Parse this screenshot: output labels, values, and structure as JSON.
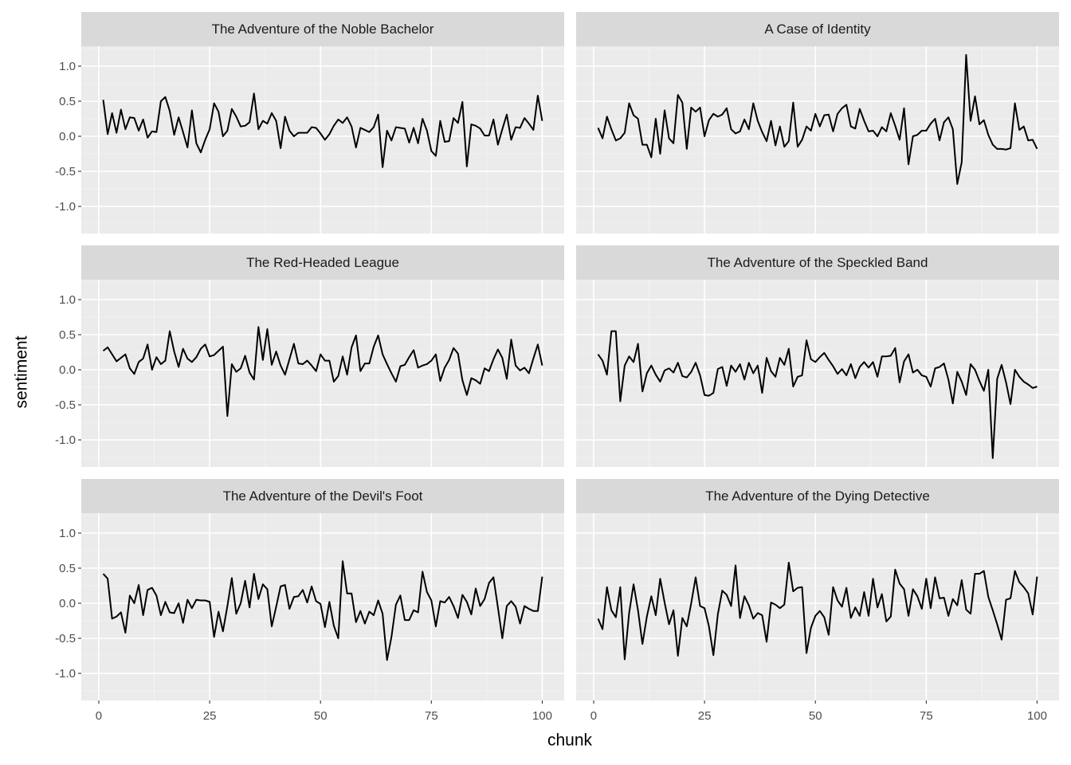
{
  "chart_data": {
    "type": "line",
    "x_label": "chunk",
    "y_label": "sentiment",
    "x": [
      1,
      2,
      3,
      4,
      5,
      6,
      7,
      8,
      9,
      10,
      11,
      12,
      13,
      14,
      15,
      16,
      17,
      18,
      19,
      20,
      21,
      22,
      23,
      24,
      25,
      26,
      27,
      28,
      29,
      30,
      31,
      32,
      33,
      34,
      35,
      36,
      37,
      38,
      39,
      40,
      41,
      42,
      43,
      44,
      45,
      46,
      47,
      48,
      49,
      50,
      51,
      52,
      53,
      54,
      55,
      56,
      57,
      58,
      59,
      60,
      61,
      62,
      63,
      64,
      65,
      66,
      67,
      68,
      69,
      70,
      71,
      72,
      73,
      74,
      75,
      76,
      77,
      78,
      79,
      80,
      81,
      82,
      83,
      84,
      85,
      86,
      87,
      88,
      89,
      90,
      91,
      92,
      93,
      94,
      95,
      96,
      97,
      98,
      99,
      100
    ],
    "xlim": [
      -3.95,
      104.95
    ],
    "xticks": [
      0,
      25,
      50,
      75,
      100
    ],
    "ylim": [
      -1.386,
      1.284
    ],
    "yticks": [
      {
        "value": -1,
        "label": "-1.0"
      },
      {
        "value": -0.5,
        "label": "-0.5"
      },
      {
        "value": 0,
        "label": "0.0"
      },
      {
        "value": 0.5,
        "label": "0.5"
      },
      {
        "value": 1,
        "label": "1.0"
      }
    ],
    "grid": true,
    "color": "#000000",
    "panels": [
      {
        "title": "The Adventure of the Noble Bachelor",
        "values": [
          0.52,
          0.03,
          0.33,
          0.05,
          0.38,
          0.1,
          0.27,
          0.26,
          0.08,
          0.24,
          -0.02,
          0.07,
          0.06,
          0.5,
          0.56,
          0.36,
          0.02,
          0.27,
          0.06,
          -0.16,
          0.37,
          -0.1,
          -0.23,
          -0.05,
          0.1,
          0.47,
          0.35,
          0.0,
          0.08,
          0.39,
          0.28,
          0.14,
          0.15,
          0.2,
          0.61,
          0.1,
          0.22,
          0.18,
          0.33,
          0.22,
          -0.17,
          0.28,
          0.08,
          0.0,
          0.05,
          0.05,
          0.05,
          0.13,
          0.12,
          0.04,
          -0.05,
          0.03,
          0.15,
          0.24,
          0.19,
          0.27,
          0.14,
          -0.16,
          0.12,
          0.09,
          0.06,
          0.13,
          0.31,
          -0.44,
          0.08,
          -0.06,
          0.13,
          0.12,
          0.11,
          -0.09,
          0.12,
          -0.1,
          0.25,
          0.08,
          -0.21,
          -0.28,
          0.22,
          -0.08,
          -0.07,
          0.26,
          0.19,
          0.49,
          -0.43,
          0.17,
          0.15,
          0.11,
          0.01,
          0.01,
          0.24,
          -0.12,
          0.1,
          0.31,
          -0.05,
          0.13,
          0.12,
          0.26,
          0.18,
          0.09,
          0.58,
          0.22
        ]
      },
      {
        "title": "A Case of Identity",
        "values": [
          0.12,
          -0.03,
          0.28,
          0.1,
          -0.06,
          -0.03,
          0.05,
          0.47,
          0.3,
          0.25,
          -0.12,
          -0.12,
          -0.3,
          0.25,
          -0.25,
          0.37,
          -0.03,
          -0.1,
          0.59,
          0.48,
          -0.18,
          0.41,
          0.35,
          0.41,
          0.0,
          0.23,
          0.32,
          0.28,
          0.31,
          0.4,
          0.1,
          0.04,
          0.07,
          0.24,
          0.1,
          0.47,
          0.22,
          0.06,
          -0.07,
          0.22,
          -0.13,
          0.14,
          -0.15,
          -0.07,
          0.48,
          -0.15,
          -0.05,
          0.14,
          0.08,
          0.32,
          0.14,
          0.3,
          0.31,
          0.07,
          0.32,
          0.4,
          0.45,
          0.14,
          0.11,
          0.39,
          0.22,
          0.07,
          0.08,
          0.0,
          0.13,
          0.07,
          0.33,
          0.15,
          -0.05,
          0.4,
          -0.4,
          0.0,
          0.02,
          0.08,
          0.08,
          0.18,
          0.25,
          -0.06,
          0.2,
          0.27,
          0.1,
          -0.68,
          -0.37,
          1.16,
          0.22,
          0.57,
          0.17,
          0.23,
          0.02,
          -0.12,
          -0.18,
          -0.18,
          -0.19,
          -0.17,
          0.47,
          0.09,
          0.14,
          -0.06,
          -0.05,
          -0.18
        ]
      },
      {
        "title": "The Red-Headed League",
        "values": [
          0.27,
          0.32,
          0.22,
          0.12,
          0.17,
          0.22,
          0.02,
          -0.06,
          0.11,
          0.16,
          0.36,
          0.0,
          0.18,
          0.08,
          0.13,
          0.55,
          0.26,
          0.04,
          0.3,
          0.16,
          0.11,
          0.18,
          0.3,
          0.36,
          0.19,
          0.21,
          0.27,
          0.33,
          -0.66,
          0.08,
          -0.03,
          0.02,
          0.2,
          -0.04,
          -0.14,
          0.61,
          0.14,
          0.58,
          0.07,
          0.26,
          0.06,
          -0.07,
          0.15,
          0.37,
          0.09,
          0.08,
          0.13,
          0.06,
          -0.02,
          0.22,
          0.13,
          0.13,
          -0.17,
          -0.09,
          0.19,
          -0.07,
          0.32,
          0.49,
          -0.02,
          0.09,
          0.09,
          0.33,
          0.49,
          0.22,
          0.08,
          -0.05,
          -0.17,
          0.05,
          0.07,
          0.18,
          0.28,
          0.03,
          0.06,
          0.08,
          0.13,
          0.22,
          -0.16,
          0.03,
          0.14,
          0.31,
          0.23,
          -0.15,
          -0.36,
          -0.12,
          -0.15,
          -0.2,
          0.02,
          -0.02,
          0.15,
          0.29,
          0.17,
          -0.13,
          0.43,
          0.06,
          -0.01,
          0.03,
          -0.05,
          0.16,
          0.36,
          0.06
        ]
      },
      {
        "title": "The Adventure of the Speckled Band",
        "values": [
          0.22,
          0.13,
          -0.07,
          0.55,
          0.55,
          -0.45,
          0.06,
          0.19,
          0.11,
          0.37,
          -0.31,
          -0.05,
          0.06,
          -0.07,
          -0.17,
          -0.01,
          0.02,
          -0.04,
          0.1,
          -0.09,
          -0.11,
          -0.03,
          0.1,
          -0.08,
          -0.36,
          -0.37,
          -0.33,
          0.01,
          0.04,
          -0.23,
          0.06,
          -0.03,
          0.08,
          -0.14,
          0.1,
          -0.05,
          0.06,
          -0.33,
          0.17,
          -0.02,
          -0.1,
          0.17,
          0.07,
          0.3,
          -0.24,
          -0.1,
          -0.08,
          0.42,
          0.15,
          0.11,
          0.18,
          0.24,
          0.14,
          0.05,
          -0.06,
          0.01,
          -0.08,
          0.08,
          -0.12,
          0.04,
          0.11,
          0.03,
          0.11,
          -0.1,
          0.19,
          0.19,
          0.2,
          0.31,
          -0.18,
          0.12,
          0.22,
          -0.04,
          0.0,
          -0.08,
          -0.1,
          -0.24,
          0.02,
          0.04,
          0.09,
          -0.14,
          -0.48,
          -0.03,
          -0.17,
          -0.36,
          0.08,
          0.0,
          -0.16,
          -0.3,
          0.0,
          -1.26,
          -0.13,
          0.07,
          -0.18,
          -0.49,
          0.0,
          -0.1,
          -0.17,
          -0.21,
          -0.26,
          -0.24
        ]
      },
      {
        "title": "The Adventure of the Devil's Foot",
        "values": [
          0.42,
          0.35,
          -0.22,
          -0.19,
          -0.13,
          -0.42,
          0.11,
          0.0,
          0.26,
          -0.17,
          0.19,
          0.22,
          0.11,
          -0.17,
          0.02,
          -0.13,
          -0.14,
          0.0,
          -0.28,
          0.05,
          -0.07,
          0.05,
          0.04,
          0.04,
          0.02,
          -0.48,
          -0.12,
          -0.4,
          -0.04,
          0.36,
          -0.15,
          0.0,
          0.32,
          -0.06,
          0.42,
          0.06,
          0.27,
          0.2,
          -0.33,
          -0.05,
          0.24,
          0.26,
          -0.08,
          0.09,
          0.1,
          0.19,
          0.01,
          0.24,
          0.03,
          -0.01,
          -0.34,
          0.02,
          -0.32,
          -0.5,
          0.6,
          0.14,
          0.14,
          -0.27,
          -0.11,
          -0.29,
          -0.12,
          -0.17,
          0.04,
          -0.15,
          -0.81,
          -0.48,
          -0.02,
          0.11,
          -0.24,
          -0.24,
          -0.1,
          -0.13,
          0.45,
          0.16,
          0.04,
          -0.33,
          0.03,
          0.01,
          0.09,
          -0.04,
          -0.21,
          0.12,
          0.02,
          -0.16,
          0.21,
          -0.04,
          0.06,
          0.29,
          0.37,
          -0.06,
          -0.5,
          -0.04,
          0.03,
          -0.05,
          -0.29,
          -0.04,
          -0.08,
          -0.11,
          -0.11,
          0.38
        ]
      },
      {
        "title": "The Adventure of the Dying Detective",
        "values": [
          -0.22,
          -0.37,
          0.23,
          -0.1,
          -0.2,
          0.23,
          -0.8,
          -0.14,
          0.27,
          -0.1,
          -0.58,
          -0.19,
          0.1,
          -0.17,
          0.35,
          0.01,
          -0.3,
          -0.1,
          -0.75,
          -0.21,
          -0.33,
          0.0,
          0.37,
          -0.04,
          -0.07,
          -0.33,
          -0.74,
          -0.16,
          0.18,
          0.12,
          -0.04,
          0.54,
          -0.21,
          0.1,
          -0.03,
          -0.22,
          -0.14,
          -0.17,
          -0.55,
          0.01,
          -0.02,
          -0.07,
          -0.02,
          0.58,
          0.17,
          0.22,
          0.23,
          -0.71,
          -0.35,
          -0.18,
          -0.11,
          -0.2,
          -0.45,
          0.23,
          0.04,
          -0.05,
          0.22,
          -0.21,
          -0.06,
          -0.18,
          0.16,
          -0.18,
          0.35,
          -0.06,
          0.13,
          -0.26,
          -0.19,
          0.48,
          0.28,
          0.2,
          -0.18,
          0.2,
          0.1,
          -0.08,
          0.35,
          -0.07,
          0.37,
          0.07,
          0.08,
          -0.18,
          0.06,
          -0.03,
          0.33,
          -0.09,
          -0.15,
          0.42,
          0.42,
          0.46,
          0.09,
          -0.1,
          -0.3,
          -0.52,
          0.05,
          0.07,
          0.46,
          0.3,
          0.23,
          0.14,
          -0.16,
          0.38
        ]
      }
    ]
  }
}
